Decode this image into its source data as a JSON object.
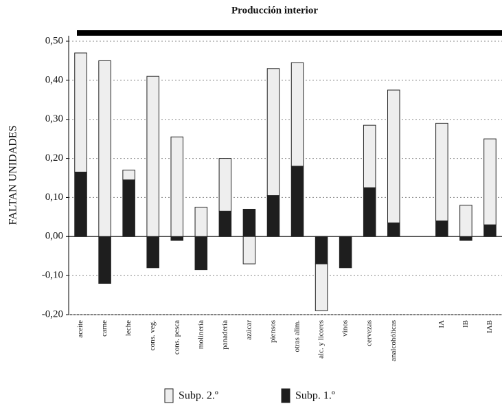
{
  "chart_data": {
    "type": "bar",
    "stacked": true,
    "title": "Producción interior",
    "y_label": "FALTAN UNIDADES",
    "categories": [
      "aceite",
      "carne",
      "leche",
      "cons. veg.",
      "cons. pesca",
      "molinería",
      "panadería",
      "azúcar",
      "piensos",
      "otras alim.",
      "alc. y licores",
      "vinos",
      "cervezas",
      "analcohólicas",
      null,
      "IA",
      "IB",
      "IAB"
    ],
    "series": [
      {
        "name": "Subp. 1.º",
        "color": "#1e1e1e",
        "values": [
          0.165,
          -0.12,
          0.145,
          -0.08,
          -0.01,
          -0.085,
          0.065,
          0.07,
          0.105,
          0.18,
          -0.07,
          -0.08,
          0.125,
          0.035,
          null,
          0.04,
          -0.01,
          0.03
        ]
      },
      {
        "name": "Subp. 2.º",
        "color": "#eeeeee",
        "values": [
          0.305,
          0.45,
          0.025,
          0.41,
          0.255,
          0.075,
          0.135,
          -0.07,
          0.325,
          0.265,
          -0.12,
          0,
          0.16,
          0.34,
          null,
          0.25,
          0.08,
          0.22
        ]
      }
    ],
    "ylim": [
      -0.2,
      0.5
    ],
    "yticks": [
      {
        "value": -0.2,
        "label": "-0,20"
      },
      {
        "value": -0.1,
        "label": "-0,10"
      },
      {
        "value": 0,
        "label": "0,00"
      },
      {
        "value": 0.1,
        "label": "0,10"
      },
      {
        "value": 0.2,
        "label": "0,20"
      },
      {
        "value": 0.3,
        "label": "0,30"
      },
      {
        "value": 0.4,
        "label": "0,40"
      },
      {
        "value": 0.5,
        "label": "0,50"
      }
    ],
    "grid": true
  }
}
